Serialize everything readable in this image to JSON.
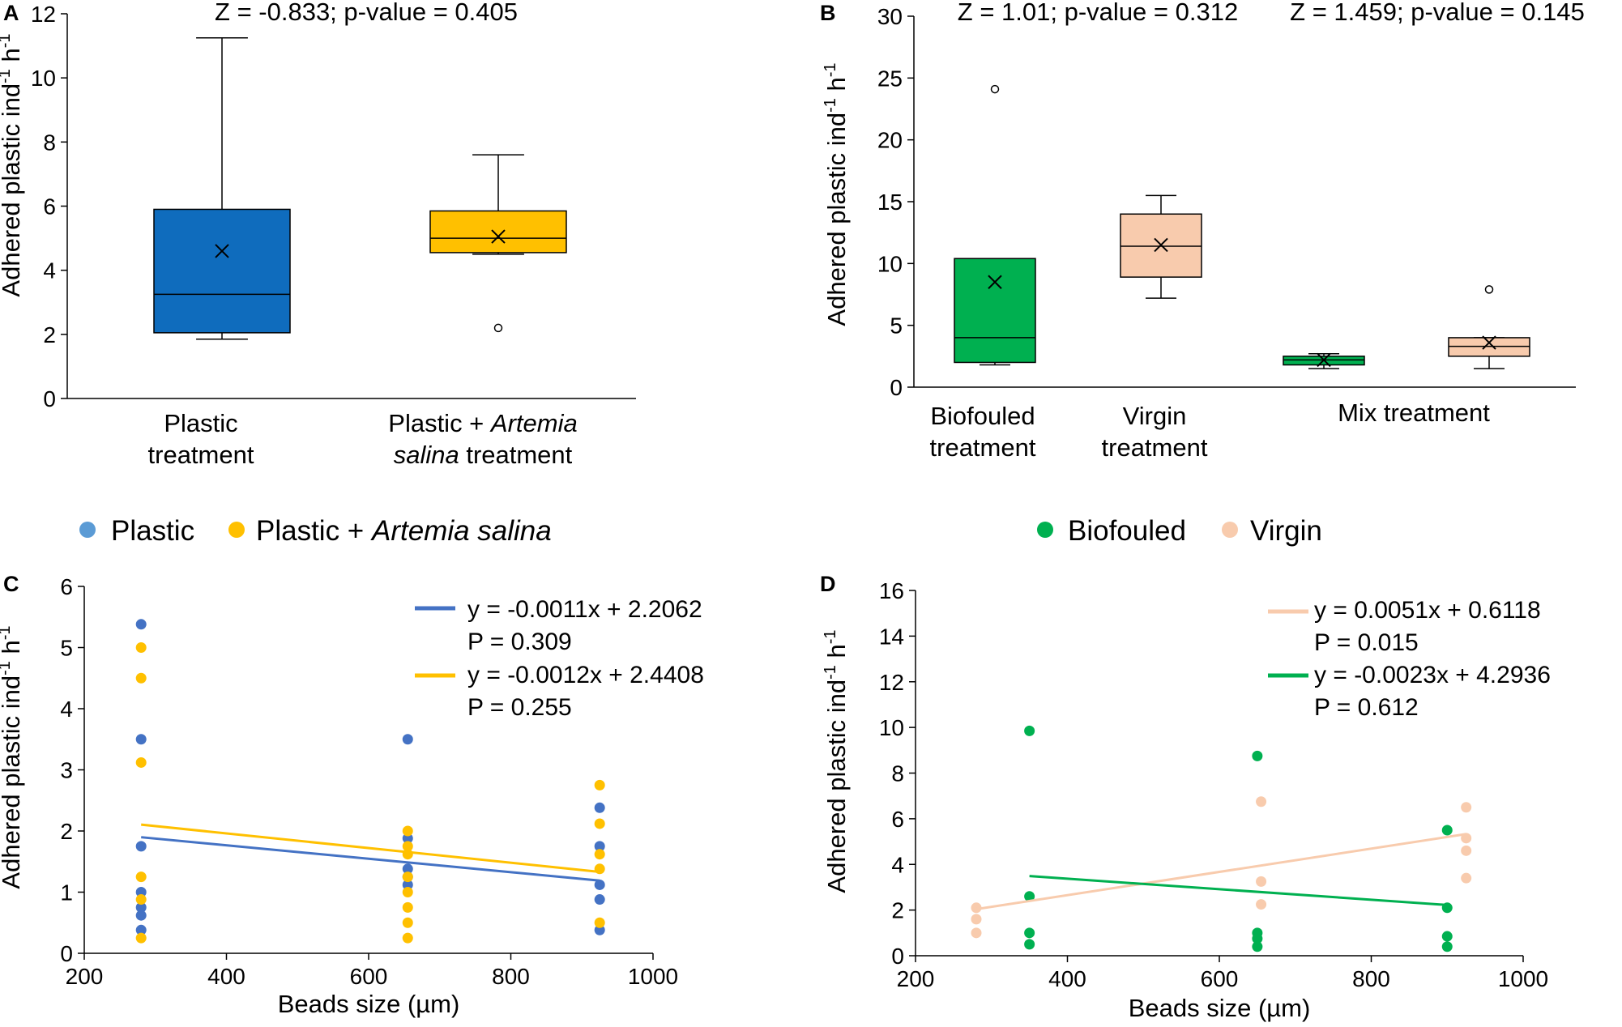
{
  "chart_data": [
    {
      "panel": "A",
      "type": "box",
      "ylabel": "Adhered plastic ind",
      "ylabel_sup1": "-1",
      "ylabel_mid": " h",
      "ylabel_sup2": "-1",
      "ylim": [
        0,
        12
      ],
      "yticks": [
        "0",
        "2",
        "4",
        "6",
        "8",
        "10",
        "12"
      ],
      "stat": "Z = -0.833; p-value = 0.405",
      "categories": [
        {
          "line1": "Plastic",
          "line2": "treatment"
        },
        {
          "line1_a": "Plastic + ",
          "line1_b": "Artemia",
          "line2_a": "salina",
          "line2_b": " treatment"
        }
      ],
      "boxes": [
        {
          "name": "Plastic treatment",
          "color": "#0F6CBD",
          "min": 1.85,
          "q1": 2.05,
          "median": 3.25,
          "q3": 5.9,
          "max": 11.25,
          "mean": 4.6,
          "outliers": []
        },
        {
          "name": "Plastic + Artemia salina treatment",
          "color": "#FFC000",
          "min": 4.5,
          "q1": 4.55,
          "median": 5.0,
          "q3": 5.85,
          "max": 7.6,
          "mean": 5.05,
          "outliers": [
            2.2
          ]
        }
      ]
    },
    {
      "panel": "B",
      "type": "box",
      "ylabel": "Adhered plastic ind",
      "ylabel_sup1": "-1",
      "ylabel_mid": " h",
      "ylabel_sup2": "-1",
      "ylim": [
        0,
        30
      ],
      "yticks": [
        "0",
        "5",
        "10",
        "15",
        "20",
        "25",
        "30"
      ],
      "stats": [
        "Z = 1.01; p-value = 0.312",
        "Z = 1.459; p-value = 0.145"
      ],
      "categories": [
        {
          "line1": "Biofouled",
          "line2": "treatment"
        },
        {
          "line1": "Virgin",
          "line2": "treatment"
        },
        {
          "line1": "Mix treatment"
        }
      ],
      "boxes": [
        {
          "name": "Biofouled treatment",
          "color": "#00B050",
          "min": 1.8,
          "q1": 2.0,
          "median": 4.0,
          "q3": 10.4,
          "max": 10.4,
          "mean": 8.5,
          "outliers": [
            24.1
          ]
        },
        {
          "name": "Virgin treatment",
          "color": "#F8CBAD",
          "min": 7.2,
          "q1": 8.9,
          "median": 11.4,
          "q3": 14.0,
          "max": 15.5,
          "mean": 11.5,
          "outliers": []
        },
        {
          "name": "Mix biofouled",
          "color": "#00B050",
          "min": 1.5,
          "q1": 1.8,
          "median": 2.2,
          "q3": 2.5,
          "max": 2.7,
          "mean": 2.2,
          "outliers": []
        },
        {
          "name": "Mix virgin",
          "color": "#F8CBAD",
          "min": 1.5,
          "q1": 2.5,
          "median": 3.3,
          "q3": 4.0,
          "max": 4.0,
          "mean": 3.6,
          "outliers": [
            7.9
          ]
        }
      ]
    },
    {
      "panel": "C",
      "type": "scatter",
      "legend": [
        {
          "label": "Plastic",
          "color": "#5B9BD5"
        },
        {
          "label": "Plastic  + ",
          "label_it": "Artemia salina",
          "color": "#FFC000"
        }
      ],
      "xlabel": "Beads size (µm)",
      "ylabel": "Adhered plastic ind",
      "ylabel_sup1": "-1",
      "ylabel_mid": " h",
      "ylabel_sup2": "-1",
      "xlim": [
        200,
        1000
      ],
      "ylim": [
        0,
        6
      ],
      "xticks": [
        "200",
        "400",
        "600",
        "800",
        "1000"
      ],
      "yticks": [
        "0",
        "1",
        "2",
        "3",
        "4",
        "5",
        "6"
      ],
      "series": [
        {
          "name": "Plastic",
          "color": "#4472C4",
          "x": 280,
          "eq": "y = -0.0011x + 2.2062",
          "p": "P = 0.309",
          "slope": -0.0011,
          "intercept": 2.2062,
          "points": [
            [
              280,
              5.38
            ],
            [
              280,
              3.5
            ],
            [
              280,
              1.75
            ],
            [
              280,
              1.0
            ],
            [
              280,
              0.75
            ],
            [
              280,
              0.62
            ],
            [
              280,
              0.38
            ],
            [
              655,
              3.5
            ],
            [
              655,
              1.88
            ],
            [
              655,
              1.38
            ],
            [
              655,
              1.25
            ],
            [
              655,
              1.12
            ],
            [
              925,
              2.38
            ],
            [
              925,
              1.75
            ],
            [
              925,
              1.12
            ],
            [
              925,
              0.88
            ],
            [
              925,
              0.38
            ]
          ]
        },
        {
          "name": "Plastic + Artemia salina",
          "color": "#FFC000",
          "eq": "y = -0.0012x + 2.4408",
          "p": "P = 0.255",
          "slope": -0.0012,
          "intercept": 2.4408,
          "points": [
            [
              280,
              5.0
            ],
            [
              280,
              4.5
            ],
            [
              280,
              3.12
            ],
            [
              280,
              1.25
            ],
            [
              280,
              0.88
            ],
            [
              280,
              0.25
            ],
            [
              655,
              2.0
            ],
            [
              655,
              1.75
            ],
            [
              655,
              1.62
            ],
            [
              655,
              1.25
            ],
            [
              655,
              1.0
            ],
            [
              655,
              0.75
            ],
            [
              655,
              0.5
            ],
            [
              655,
              0.25
            ],
            [
              925,
              2.75
            ],
            [
              925,
              2.12
            ],
            [
              925,
              1.62
            ],
            [
              925,
              1.38
            ],
            [
              925,
              0.5
            ]
          ]
        }
      ]
    },
    {
      "panel": "D",
      "type": "scatter",
      "legend": [
        {
          "label": "Biofouled",
          "color": "#00B050"
        },
        {
          "label": "Virgin",
          "color": "#F8CBAD"
        }
      ],
      "xlabel": "Beads size (µm)",
      "ylabel": "Adhered plastic ind",
      "ylabel_sup1": "-1",
      "ylabel_mid": " h",
      "ylabel_sup2": "-1",
      "xlim": [
        200,
        1000
      ],
      "ylim": [
        0,
        16
      ],
      "xticks": [
        "200",
        "400",
        "600",
        "800",
        "1000"
      ],
      "yticks": [
        "0",
        "2",
        "4",
        "6",
        "8",
        "10",
        "12",
        "14",
        "16"
      ],
      "series": [
        {
          "name": "Virgin",
          "color": "#F8CBAD",
          "eq": "y = 0.0051x + 0.6118",
          "p": "P = 0.015",
          "slope": 0.0051,
          "intercept": 0.6118,
          "points": [
            [
              280,
              2.1
            ],
            [
              280,
              1.6
            ],
            [
              280,
              1.0
            ],
            [
              655,
              6.75
            ],
            [
              655,
              3.25
            ],
            [
              655,
              2.25
            ],
            [
              925,
              6.5
            ],
            [
              925,
              5.15
            ],
            [
              925,
              4.6
            ],
            [
              925,
              3.4
            ]
          ]
        },
        {
          "name": "Biofouled",
          "color": "#00B050",
          "eq": "y = -0.0023x + 4.2936",
          "p": "P = 0.612",
          "slope": -0.0023,
          "intercept": 4.2936,
          "points": [
            [
              350,
              9.85
            ],
            [
              350,
              2.6
            ],
            [
              350,
              1.0
            ],
            [
              350,
              0.5
            ],
            [
              650,
              8.75
            ],
            [
              650,
              1.0
            ],
            [
              650,
              0.75
            ],
            [
              650,
              0.4
            ],
            [
              900,
              5.5
            ],
            [
              900,
              2.1
            ],
            [
              900,
              0.85
            ],
            [
              900,
              0.4
            ]
          ]
        }
      ]
    }
  ]
}
